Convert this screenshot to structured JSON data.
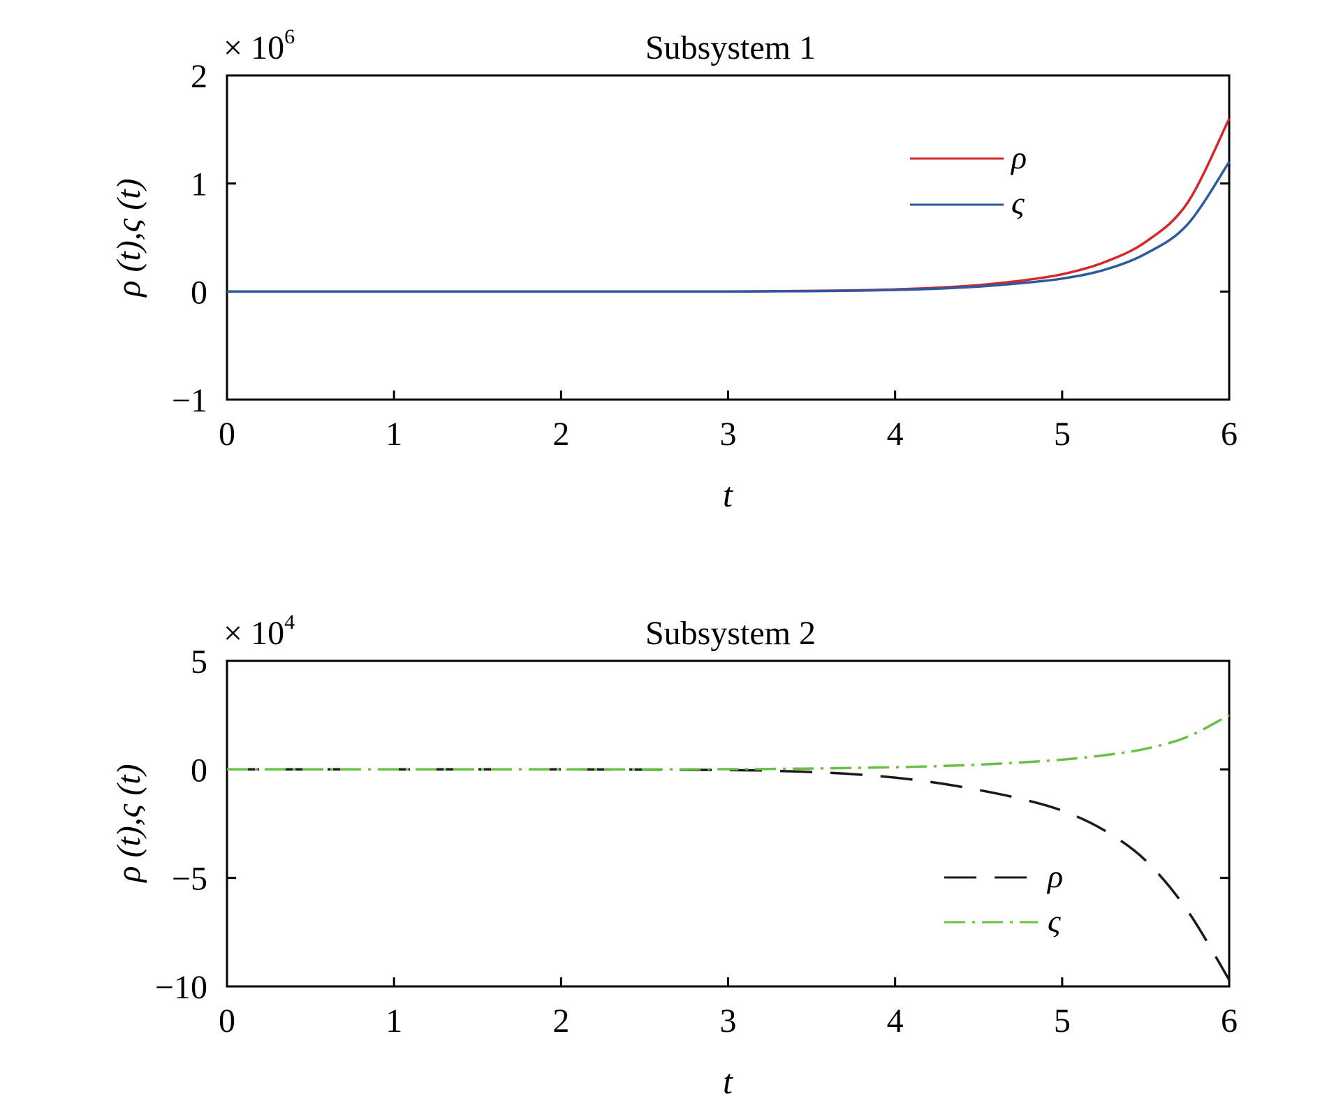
{
  "chart_data": [
    {
      "type": "line",
      "title": "Subsystem 1",
      "xlabel": "t",
      "ylabel": "ρ (t),ς (t)",
      "scale_label": "× 10",
      "scale_exp": "6",
      "xlim": [
        0,
        6
      ],
      "ylim": [
        -1,
        2
      ],
      "y_scale": 1000000,
      "xticks": [
        "0",
        "1",
        "2",
        "3",
        "4",
        "5",
        "6"
      ],
      "yticks": [
        "−1",
        "0",
        "1",
        "2"
      ],
      "ytick_values": [
        -1,
        0,
        1,
        2
      ],
      "grid": false,
      "legend_position": "upper-right",
      "x": [
        0,
        0.5,
        1,
        1.5,
        2,
        2.5,
        3,
        3.25,
        3.5,
        3.75,
        4,
        4.25,
        4.5,
        4.75,
        5,
        5.25,
        5.5,
        5.75,
        6
      ],
      "series": [
        {
          "name": "ρ",
          "color": "#d62728",
          "style": "solid",
          "values": [
            0,
            0,
            0,
            0,
            0,
            0,
            0.001,
            0.003,
            0.006,
            0.011,
            0.02,
            0.035,
            0.06,
            0.1,
            0.16,
            0.27,
            0.46,
            0.82,
            1.6
          ]
        },
        {
          "name": "ς",
          "color": "#2c5aa0",
          "style": "solid",
          "values": [
            0,
            0,
            0,
            0,
            0,
            0,
            0.001,
            0.002,
            0.004,
            0.008,
            0.015,
            0.027,
            0.046,
            0.077,
            0.12,
            0.2,
            0.35,
            0.62,
            1.2
          ]
        }
      ]
    },
    {
      "type": "line",
      "title": "Subsystem 2",
      "xlabel": "t",
      "ylabel": "ρ (t),ς (t)",
      "scale_label": "× 10",
      "scale_exp": "4",
      "xlim": [
        0,
        6
      ],
      "ylim": [
        -10,
        5
      ],
      "y_scale": 10000,
      "xticks": [
        "0",
        "1",
        "2",
        "3",
        "4",
        "5",
        "6"
      ],
      "yticks": [
        "−10",
        "−5",
        "0",
        "5"
      ],
      "ytick_values": [
        -10,
        -5,
        0,
        5
      ],
      "grid": false,
      "legend_position": "lower-right",
      "x": [
        0,
        0.5,
        1,
        1.5,
        2,
        2.5,
        3,
        3.25,
        3.5,
        3.75,
        4,
        4.25,
        4.5,
        4.75,
        5,
        5.25,
        5.5,
        5.75,
        6
      ],
      "series": [
        {
          "name": "ρ",
          "color": "#1a1a1a",
          "style": "dashed",
          "values": [
            0,
            0,
            0,
            0,
            0,
            -0.01,
            -0.03,
            -0.06,
            -0.12,
            -0.22,
            -0.38,
            -0.62,
            -0.95,
            -1.35,
            -1.9,
            -2.8,
            -4.2,
            -6.5,
            -9.7
          ]
        },
        {
          "name": "ς",
          "color": "#6abf45",
          "style": "dashdot",
          "values": [
            0,
            0,
            0,
            0,
            0,
            0,
            0.01,
            0.02,
            0.04,
            0.07,
            0.1,
            0.15,
            0.22,
            0.32,
            0.45,
            0.65,
            0.95,
            1.5,
            2.5
          ]
        }
      ]
    }
  ]
}
